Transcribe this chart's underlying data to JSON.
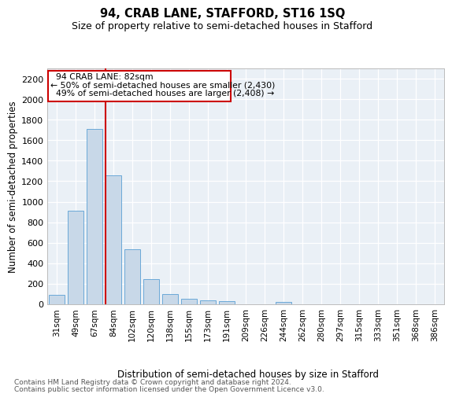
{
  "title": "94, CRAB LANE, STAFFORD, ST16 1SQ",
  "subtitle": "Size of property relative to semi-detached houses in Stafford",
  "xlabel": "Distribution of semi-detached houses by size in Stafford",
  "ylabel": "Number of semi-detached properties",
  "categories": [
    "31sqm",
    "49sqm",
    "67sqm",
    "84sqm",
    "102sqm",
    "120sqm",
    "138sqm",
    "155sqm",
    "173sqm",
    "191sqm",
    "209sqm",
    "226sqm",
    "244sqm",
    "262sqm",
    "280sqm",
    "297sqm",
    "315sqm",
    "333sqm",
    "351sqm",
    "368sqm",
    "386sqm"
  ],
  "values": [
    95,
    910,
    1710,
    1260,
    535,
    245,
    100,
    50,
    35,
    28,
    0,
    0,
    20,
    0,
    0,
    0,
    0,
    0,
    0,
    0,
    0
  ],
  "bar_color": "#c8d8e8",
  "bar_edge_color": "#5a9fd4",
  "vline_color": "#cc0000",
  "vline_x": 2.57,
  "bg_color": "#eaf0f6",
  "grid_color": "#ffffff",
  "ylim": [
    0,
    2300
  ],
  "yticks": [
    0,
    200,
    400,
    600,
    800,
    1000,
    1200,
    1400,
    1600,
    1800,
    2000,
    2200
  ],
  "property_label": "94 CRAB LANE: 82sqm",
  "ann_smaller": "← 50% of semi-detached houses are smaller (2,430)",
  "ann_larger": "49% of semi-detached houses are larger (2,408) →",
  "ann_box_edge": "#cc0000",
  "ann_box_face": "#ffffff",
  "footer_line1": "Contains HM Land Registry data © Crown copyright and database right 2024.",
  "footer_line2": "Contains public sector information licensed under the Open Government Licence v3.0."
}
